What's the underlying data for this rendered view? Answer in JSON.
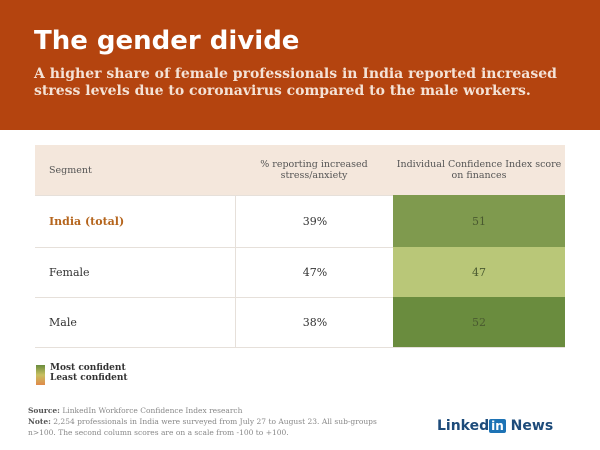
{
  "header": {
    "title": "The gender divide",
    "subtitle": "A higher share of female professionals in India reported increased stress levels due to coronavirus compared to the male workers."
  },
  "chart_data": {
    "type": "table",
    "columns": [
      "Segment",
      "% reporting increased stress/anxiety",
      "Individual Confidence Index score on finances"
    ],
    "rows": [
      {
        "segment": "India (total)",
        "stress": "39%",
        "score": "51",
        "color": "#7f9a4e"
      },
      {
        "segment": "Female",
        "stress": "47%",
        "score": "47",
        "color": "#b9c778"
      },
      {
        "segment": "Male",
        "stress": "38%",
        "score": "52",
        "color": "#6a8c3e"
      }
    ],
    "legend": {
      "most": "Most confident",
      "least": "Least confident"
    }
  },
  "footer": {
    "source_label": "Source:",
    "source": "LinkedIn Workforce Confidence Index research",
    "note_label": "Note:",
    "note": "2,254 professionals in India were surveyed from July 27 to August 23. All sub-groups n>100. The second column scores are on a scale from -100 to +100."
  },
  "logo": {
    "linked": "Linked",
    "in": "in",
    "news": "News"
  },
  "colors": {
    "header": "#b4440f",
    "accent_text": "#b5651d"
  }
}
